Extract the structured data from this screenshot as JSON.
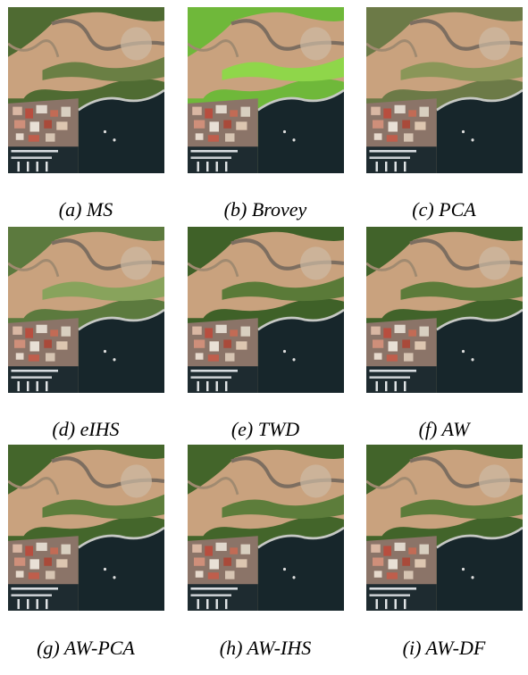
{
  "figure": {
    "panels": [
      {
        "caption": "(a) MS"
      },
      {
        "caption": "(b) Brovey"
      },
      {
        "caption": "(c) PCA"
      },
      {
        "caption": "(d) eIHS"
      },
      {
        "caption": "(e) TWD"
      },
      {
        "caption": "(f) AW"
      },
      {
        "caption": "(g) AW-PCA"
      },
      {
        "caption": "(h) AW-IHS"
      },
      {
        "caption": "(i) AW-DF"
      }
    ]
  }
}
